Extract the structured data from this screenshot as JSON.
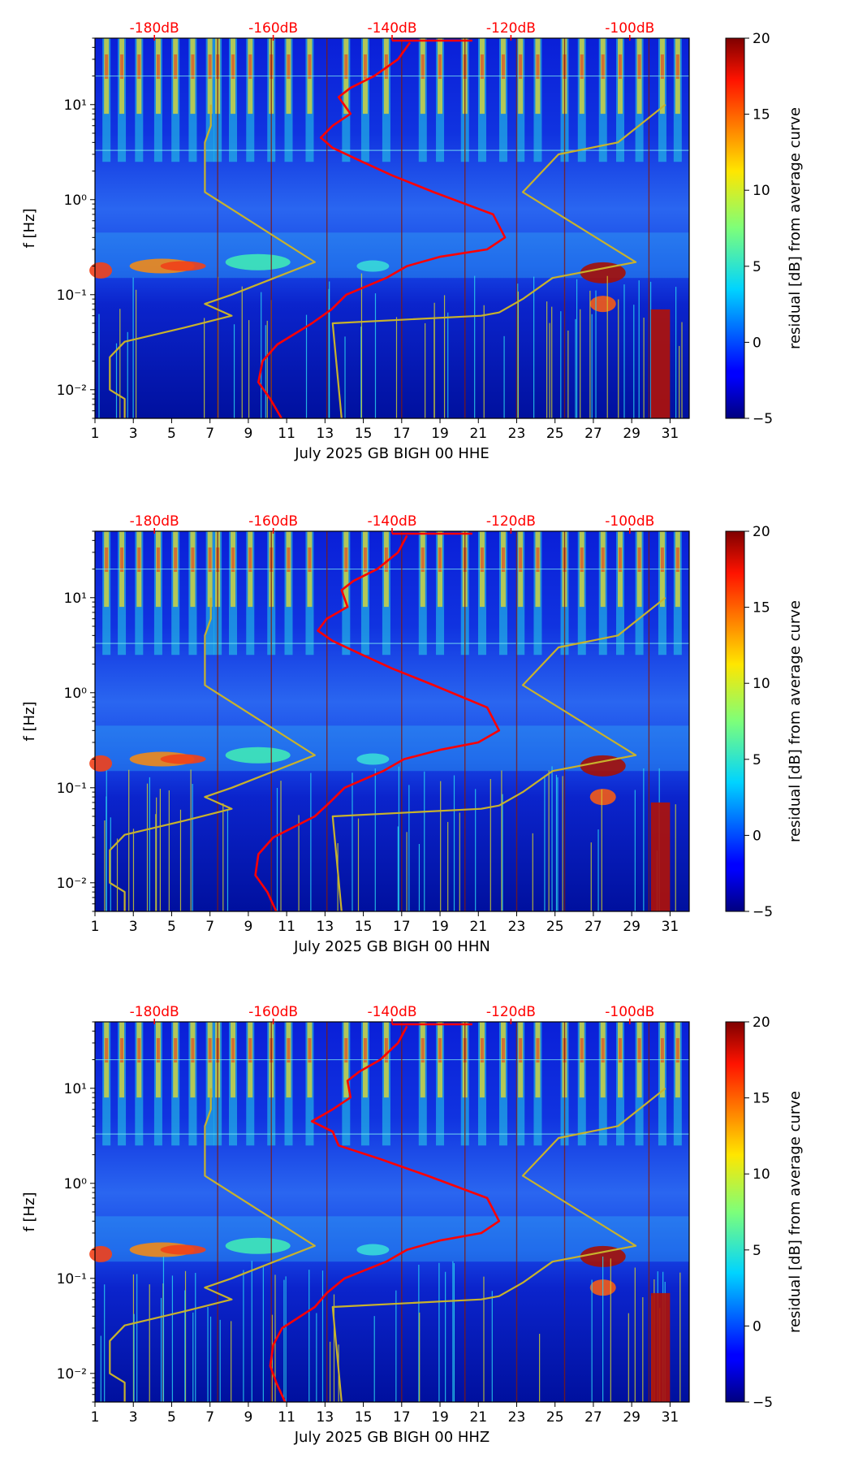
{
  "chart_data": [
    {
      "type": "heatmap",
      "channel": "HHE",
      "xlabel": "July 2025 GB BIGH 00 HHE",
      "ylabel": "f [Hz]",
      "x_tick_labels": [
        "1",
        "3",
        "5",
        "7",
        "9",
        "11",
        "13",
        "15",
        "17",
        "19",
        "21",
        "23",
        "25",
        "27",
        "29",
        "31"
      ],
      "x_ticks": [
        1,
        3,
        5,
        7,
        9,
        11,
        13,
        15,
        17,
        19,
        21,
        23,
        25,
        27,
        29,
        31
      ],
      "xlim": [
        1,
        32
      ],
      "y_tick_labels": [
        "10⁻²",
        "10⁻¹",
        "10⁰",
        "10¹"
      ],
      "y_ticks": [
        0.01,
        0.1,
        1,
        10
      ],
      "ylim": [
        0.005,
        50
      ],
      "yscale": "log",
      "top_axis_labels": [
        "-180dB",
        "-160dB",
        "-140dB",
        "-120dB",
        "-100dB"
      ],
      "top_axis_db": [
        -180,
        -160,
        -140,
        -120,
        -100
      ],
      "top_axis_range_db": [
        -190,
        -90
      ],
      "colorbar": {
        "label": "residual [dB] from average curve",
        "tick_labels": [
          "20",
          "15",
          "10",
          "5",
          "0",
          "−5"
        ],
        "ticks": [
          20,
          15,
          10,
          5,
          0,
          -5
        ],
        "range": [
          -5,
          20
        ]
      },
      "series": [
        {
          "name": "average PSD",
          "color": "#ff0000",
          "x_db": [
            -158.6,
            -160.5,
            -162.5,
            -161.8,
            -159.3,
            -153.5,
            -150.2,
            -147.7,
            -141.0,
            -137.5,
            -132.0,
            -124.0,
            -121.0,
            -123.0,
            -133.0,
            -140.0,
            -145.0,
            -150.0,
            -152.0,
            -150.0,
            -147.0,
            -149.0,
            -147.0,
            -143.0,
            -139.0,
            -137.0
          ],
          "f_hz": [
            0.005,
            0.008,
            0.012,
            0.02,
            0.03,
            0.05,
            0.07,
            0.1,
            0.15,
            0.2,
            0.25,
            0.3,
            0.4,
            0.7,
            1.2,
            1.8,
            2.5,
            3.5,
            4.5,
            6,
            8,
            12,
            15,
            20,
            30,
            45
          ]
        },
        {
          "name": "low noise model",
          "color": "#c8b22c",
          "x_db": [
            -185.0,
            -185.0,
            -187.5,
            -187.5,
            -185.0,
            -175.0,
            -167.0,
            -171.5,
            -167.0,
            -153.0,
            -171.5,
            -171.5,
            -170.5,
            -170.5
          ],
          "f_hz": [
            0.005,
            0.008,
            0.01,
            0.022,
            0.032,
            0.045,
            0.06,
            0.08,
            0.1,
            0.22,
            1.2,
            4,
            6,
            10
          ]
        },
        {
          "name": "high noise model",
          "color": "#c8b22c",
          "x_db": [
            -148.5,
            -150.0,
            -125.0,
            -122.0,
            -118.0,
            -113.0,
            -99.0,
            -118.0,
            -112.0,
            -102.0,
            -94.0
          ],
          "f_hz": [
            0.005,
            0.05,
            0.06,
            0.065,
            0.09,
            0.15,
            0.22,
            1.2,
            3,
            4,
            10
          ]
        }
      ]
    },
    {
      "type": "heatmap",
      "channel": "HHN",
      "xlabel": "July 2025 GB BIGH 00 HHN",
      "ylabel": "f [Hz]",
      "x_tick_labels": [
        "1",
        "3",
        "5",
        "7",
        "9",
        "11",
        "13",
        "15",
        "17",
        "19",
        "21",
        "23",
        "25",
        "27",
        "29",
        "31"
      ],
      "x_ticks": [
        1,
        3,
        5,
        7,
        9,
        11,
        13,
        15,
        17,
        19,
        21,
        23,
        25,
        27,
        29,
        31
      ],
      "xlim": [
        1,
        32
      ],
      "y_tick_labels": [
        "10⁻²",
        "10⁻¹",
        "10⁰",
        "10¹"
      ],
      "y_ticks": [
        0.01,
        0.1,
        1,
        10
      ],
      "ylim": [
        0.005,
        50
      ],
      "yscale": "log",
      "top_axis_labels": [
        "-180dB",
        "-160dB",
        "-140dB",
        "-120dB",
        "-100dB"
      ],
      "top_axis_db": [
        -180,
        -160,
        -140,
        -120,
        -100
      ],
      "top_axis_range_db": [
        -190,
        -90
      ],
      "colorbar": {
        "label": "residual [dB] from average curve",
        "tick_labels": [
          "20",
          "15",
          "10",
          "5",
          "0",
          "−5"
        ],
        "ticks": [
          20,
          15,
          10,
          5,
          0,
          -5
        ],
        "range": [
          -5,
          20
        ]
      },
      "series": [
        {
          "name": "average PSD",
          "color": "#ff0000",
          "x_db": [
            -159.5,
            -161.0,
            -163.0,
            -162.5,
            -160.0,
            -153.0,
            -150.5,
            -148.0,
            -141.5,
            -138.0,
            -132.0,
            -125.5,
            -122.0,
            -124.0,
            -133.0,
            -140.0,
            -145.0,
            -150.0,
            -152.5,
            -151.0,
            -147.5,
            -148.5,
            -146.5,
            -142.5,
            -139.0,
            -137.5
          ],
          "f_hz": [
            0.005,
            0.008,
            0.012,
            0.02,
            0.03,
            0.05,
            0.07,
            0.1,
            0.15,
            0.2,
            0.25,
            0.3,
            0.4,
            0.7,
            1.2,
            1.8,
            2.5,
            3.5,
            4.5,
            6,
            8,
            12,
            15,
            20,
            30,
            45
          ]
        },
        {
          "name": "low noise model",
          "color": "#c8b22c",
          "x_db": [
            -185.0,
            -185.0,
            -187.5,
            -187.5,
            -185.0,
            -175.0,
            -167.0,
            -171.5,
            -167.0,
            -153.0,
            -171.5,
            -171.5,
            -170.5,
            -170.5
          ],
          "f_hz": [
            0.005,
            0.008,
            0.01,
            0.022,
            0.032,
            0.045,
            0.06,
            0.08,
            0.1,
            0.22,
            1.2,
            4,
            6,
            10
          ]
        },
        {
          "name": "high noise model",
          "color": "#c8b22c",
          "x_db": [
            -148.5,
            -150.0,
            -125.0,
            -122.0,
            -118.0,
            -113.0,
            -99.0,
            -118.0,
            -112.0,
            -102.0,
            -94.0
          ],
          "f_hz": [
            0.005,
            0.05,
            0.06,
            0.065,
            0.09,
            0.15,
            0.22,
            1.2,
            3,
            4,
            10
          ]
        }
      ]
    },
    {
      "type": "heatmap",
      "channel": "HHZ",
      "xlabel": "July 2025 GB BIGH 00 HHZ",
      "ylabel": "f [Hz]",
      "x_tick_labels": [
        "1",
        "3",
        "5",
        "7",
        "9",
        "11",
        "13",
        "15",
        "17",
        "19",
        "21",
        "23",
        "25",
        "27",
        "29",
        "31"
      ],
      "x_ticks": [
        1,
        3,
        5,
        7,
        9,
        11,
        13,
        15,
        17,
        19,
        21,
        23,
        25,
        27,
        29,
        31
      ],
      "xlim": [
        1,
        32
      ],
      "y_tick_labels": [
        "10⁻²",
        "10⁻¹",
        "10⁰",
        "10¹"
      ],
      "y_ticks": [
        0.01,
        0.1,
        1,
        10
      ],
      "ylim": [
        0.005,
        50
      ],
      "yscale": "log",
      "top_axis_labels": [
        "-180dB",
        "-160dB",
        "-140dB",
        "-120dB",
        "-100dB"
      ],
      "top_axis_db": [
        -180,
        -160,
        -140,
        -120,
        -100
      ],
      "top_axis_range_db": [
        -190,
        -90
      ],
      "colorbar": {
        "label": "residual [dB] from average curve",
        "tick_labels": [
          "20",
          "15",
          "10",
          "5",
          "0",
          "−5"
        ],
        "ticks": [
          20,
          15,
          10,
          5,
          0,
          -5
        ],
        "range": [
          -5,
          20
        ]
      },
      "series": [
        {
          "name": "average PSD",
          "color": "#ff0000",
          "x_db": [
            -158.0,
            -159.5,
            -160.5,
            -160.0,
            -158.5,
            -153.0,
            -151.0,
            -148.0,
            -141.0,
            -137.5,
            -132.0,
            -125.0,
            -122.0,
            -124.0,
            -134.0,
            -142.0,
            -149.0,
            -150.0,
            -153.5,
            -150.0,
            -147.0,
            -147.5,
            -145.5,
            -142.0,
            -139.0,
            -137.5
          ],
          "f_hz": [
            0.005,
            0.008,
            0.012,
            0.02,
            0.03,
            0.05,
            0.07,
            0.1,
            0.15,
            0.2,
            0.25,
            0.3,
            0.4,
            0.7,
            1.2,
            1.8,
            2.5,
            3.5,
            4.5,
            6,
            8,
            12,
            15,
            20,
            30,
            45
          ]
        },
        {
          "name": "low noise model",
          "color": "#c8b22c",
          "x_db": [
            -185.0,
            -185.0,
            -187.5,
            -187.5,
            -185.0,
            -175.0,
            -167.0,
            -171.5,
            -167.0,
            -153.0,
            -171.5,
            -171.5,
            -170.5,
            -170.5
          ],
          "f_hz": [
            0.005,
            0.008,
            0.01,
            0.022,
            0.032,
            0.045,
            0.06,
            0.08,
            0.1,
            0.22,
            1.2,
            4,
            6,
            10
          ]
        },
        {
          "name": "high noise model",
          "color": "#c8b22c",
          "x_db": [
            -148.5,
            -150.0,
            -125.0,
            -122.0,
            -118.0,
            -113.0,
            -99.0,
            -118.0,
            -112.0,
            -102.0,
            -94.0
          ],
          "f_hz": [
            0.005,
            0.05,
            0.06,
            0.065,
            0.09,
            0.15,
            0.22,
            1.2,
            3,
            4,
            10
          ]
        }
      ]
    }
  ]
}
